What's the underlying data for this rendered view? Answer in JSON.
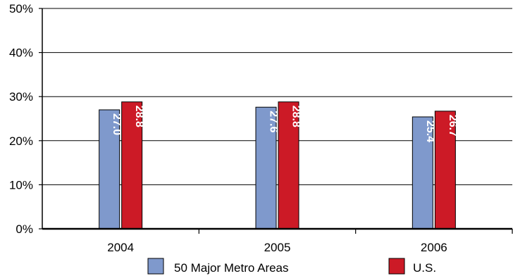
{
  "chart_data": {
    "type": "bar",
    "categories": [
      "2004",
      "2005",
      "2006"
    ],
    "series": [
      {
        "name": "50 Major Metro Areas",
        "values": [
          27.0,
          27.6,
          25.4
        ],
        "labels": [
          "27.0",
          "27.6",
          "25.4"
        ],
        "color": "#7f99cc"
      },
      {
        "name": "U.S.",
        "values": [
          28.8,
          28.8,
          26.7
        ],
        "labels": [
          "28.8",
          "28.8",
          "26.7"
        ],
        "color": "#cc1a26"
      }
    ],
    "ylim": [
      0,
      50
    ],
    "yticks": [
      0,
      10,
      20,
      30,
      40,
      50
    ],
    "ytick_labels": [
      "0%",
      "10%",
      "20%",
      "30%",
      "40%",
      "50%"
    ],
    "grid": true,
    "legend_position": "bottom",
    "xlabel": "",
    "ylabel": "",
    "title": ""
  }
}
